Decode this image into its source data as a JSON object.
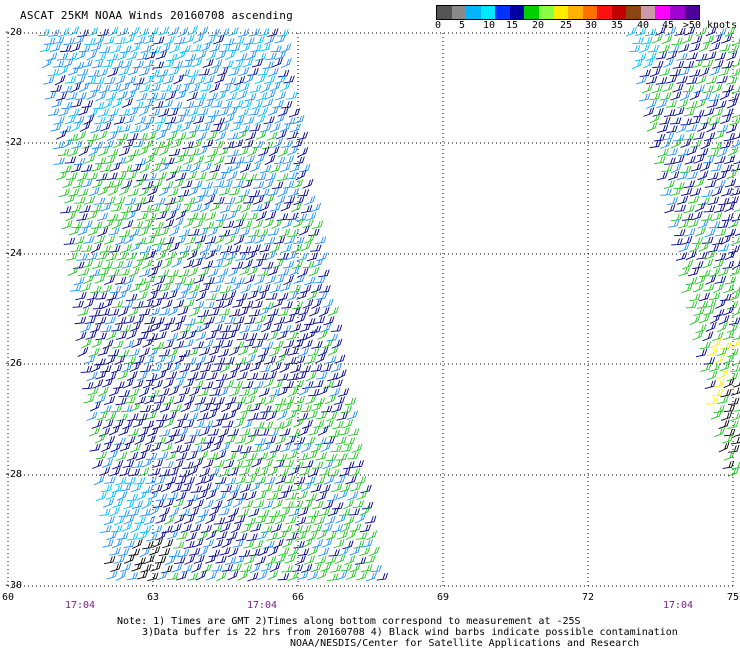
{
  "title": "ASCAT 25KM NOAA Winds 20160708 ascending",
  "legend": {
    "colors": [
      "#555555",
      "#8a8a8a",
      "#00b4ff",
      "#00e8ff",
      "#0033ff",
      "#0000a0",
      "#00d000",
      "#88ff44",
      "#ffee00",
      "#ffb000",
      "#ff7000",
      "#ff1010",
      "#c00000",
      "#8b4513",
      "#cc99aa",
      "#ff00ff",
      "#a000d0",
      "#50009a"
    ],
    "labels": [
      "0",
      "5",
      "10",
      "15",
      "20",
      "25",
      "30",
      "35",
      "40",
      "45",
      ">50 knots"
    ]
  },
  "axes": {
    "y_labels": [
      "-20",
      "-22",
      "-24",
      "-26",
      "-28",
      "-30"
    ],
    "x_labels": [
      "60",
      "63",
      "66",
      "69",
      "72",
      "75"
    ],
    "time_labels": [
      "17:04",
      "17:04",
      "17:04"
    ]
  },
  "wind_colors": {
    "cyan": "#00bfff",
    "light_blue": "#1e90ff",
    "navy": "#00008b",
    "green": "#22c422",
    "yellow": "#ffee00",
    "black": "#000000"
  },
  "notes": {
    "line1": "Note: 1) Times are GMT 2)Times along bottom correspond to measurement at -25S",
    "line2": "3)Data buffer is 22 hrs from 20160708 4) Black wind barbs indicate possible contamination",
    "line3": "NOAA/NESDIS/Center for Satellite Applications and Research"
  }
}
